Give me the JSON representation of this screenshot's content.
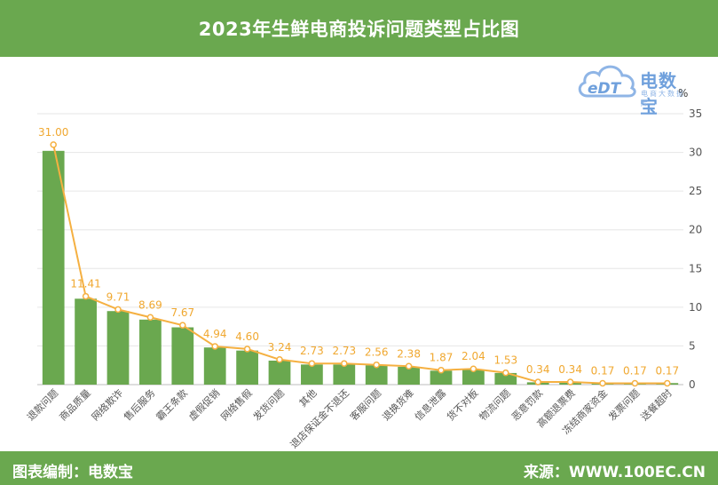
{
  "title": "2023年生鲜电商投诉问题类型占比图",
  "footer": {
    "left": "图表编制：电数宝",
    "right": "来源：WWW.100EC.CN"
  },
  "logo": {
    "mark_text": "eDT",
    "brand": "电数宝",
    "sub": "电商大数据库",
    "unit": "%"
  },
  "colors": {
    "bar": "#6aa84f",
    "line": "#f5b041",
    "label": "#f0a830",
    "axis_text": "#555555",
    "grid": "#e6e6e6"
  },
  "chart_data": {
    "type": "bar",
    "title": "2023年生鲜电商投诉问题类型占比图",
    "unit": "%",
    "categories": [
      "退款问题",
      "商品质量",
      "网络欺诈",
      "售后服务",
      "霸王条款",
      "虚假促销",
      "网络售假",
      "发货问题",
      "其他",
      "退店保证金不退还",
      "客服问题",
      "退换货难",
      "信息泄露",
      "货不对板",
      "物流问题",
      "恶意罚款",
      "高额退票费",
      "冻结商家资金",
      "发票问题",
      "送餐超时"
    ],
    "series": [
      {
        "type": "bar",
        "values": [
          30.2,
          11.1,
          9.5,
          8.4,
          7.4,
          4.8,
          4.4,
          3.1,
          2.6,
          2.6,
          2.5,
          2.3,
          1.8,
          1.9,
          1.5,
          0.3,
          0.3,
          0.2,
          0.2,
          0.2
        ]
      },
      {
        "type": "line",
        "values": [
          31.0,
          11.41,
          9.71,
          8.69,
          7.67,
          4.94,
          4.6,
          3.24,
          2.73,
          2.73,
          2.56,
          2.38,
          1.87,
          2.04,
          1.53,
          0.34,
          0.34,
          0.17,
          0.17,
          0.17
        ],
        "labels": [
          "31.00",
          "11.41",
          "9.71",
          "8.69",
          "7.67",
          "4.94",
          "4.60",
          "3.24",
          "2.73",
          "2.73",
          "2.56",
          "2.38",
          "1.87",
          "2.04",
          "1.53",
          "0.34",
          "0.34",
          "0.17",
          "0.17",
          "0.17"
        ]
      }
    ],
    "ylim": [
      0,
      35
    ],
    "yticks": [
      "0",
      "5",
      "10",
      "15",
      "20",
      "25",
      "30",
      "35"
    ],
    "grid": true,
    "y_axis_side": "right"
  }
}
